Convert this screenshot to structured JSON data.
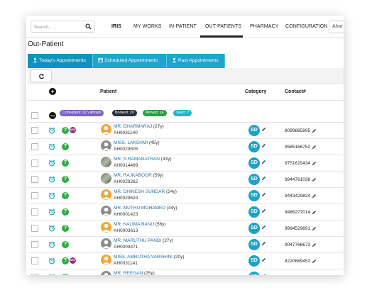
{
  "nav": {
    "search_placeholder": "Search......",
    "brand": "IRIS",
    "items": [
      "MY WORKS",
      "IN-PATIENT",
      "OUT-PATIENTS",
      "PHARMACY",
      "CONFIGURATION"
    ],
    "active_item": "OUT-PATIENTS",
    "right_select": "Ahar"
  },
  "page_title": "Out-Patient",
  "tabs": [
    {
      "label": "Today's Appointments",
      "icon": "user-icon",
      "active": true
    },
    {
      "label": "Scheduled Appointments",
      "icon": "calendar-icon",
      "active": false
    },
    {
      "label": "Past Appointments",
      "icon": "user-icon",
      "active": false
    }
  ],
  "toolbar": {
    "refresh_icon": "refresh-icon"
  },
  "table": {
    "columns": {
      "patient": "Patient",
      "category": "Category",
      "contact": "Contact#"
    }
  },
  "group": {
    "consultant": "Consultant: Dr.Vikhram",
    "booked": "Booked: 20",
    "arrived": "Arrived: 14",
    "seen": "Seen: 7"
  },
  "colors": {
    "tab_blue": "#1ea6cf",
    "link_blue": "#1c6fa8",
    "consultant_badge": "#7b62c4",
    "booked_badge": "#2b2f3a",
    "arrived_badge": "#2e9e3f",
    "seen_badge": "#1fb5cf",
    "category_badge": "#1ba3c9",
    "question_green": "#2eae45",
    "new_badge": "#9b2a8c"
  },
  "rows": [
    {
      "name": "MR. DHARMARAJ",
      "age": "(27y)",
      "id": "AH0031140",
      "category": "SD",
      "contact": "8098885995",
      "avatar": "orange",
      "new_badge": true
    },
    {
      "name": "MISS. LAKSHMI",
      "age": "(45y)",
      "id": "AH0029505",
      "category": "SD",
      "contact": "9585166752",
      "avatar": "gray",
      "new_badge": false
    },
    {
      "name": "MR. S.RAMANATHAN",
      "age": "(43y)",
      "id": "AH0014489",
      "category": "SD",
      "contact": "9751615434",
      "avatar": "photo",
      "new_badge": false
    },
    {
      "name": "MR. RAJKABOOR",
      "age": "(59y)",
      "id": "AH0029262",
      "category": "SD",
      "contact": "9944761038",
      "avatar": "photo",
      "new_badge": false
    },
    {
      "name": "MR. DHINESH SUNDAR",
      "age": "(24y)",
      "id": "AH0029624",
      "category": "SD",
      "contact": "9443429824",
      "avatar": "orange",
      "new_badge": false
    },
    {
      "name": "MR. MUTHU MOHAMED",
      "age": "(44y)",
      "id": "AH0001423",
      "category": "SD",
      "contact": "9486277014",
      "avatar": "gray",
      "new_badge": false
    },
    {
      "name": "MR. KALIMA BANU",
      "age": "(56y)",
      "id": "AH0003613",
      "category": "SD",
      "contact": "9994529891",
      "avatar": "orange",
      "new_badge": false
    },
    {
      "name": "MR. MARUTHU PANDI",
      "age": "(27y)",
      "id": "AH0009471",
      "category": "SD",
      "contact": "9047766673",
      "avatar": "gray",
      "new_badge": false
    },
    {
      "name": "MISS. AMRUTHA VARSHINI",
      "age": "(20y)",
      "id": "AH0031141",
      "category": "SD",
      "contact": "8220689452",
      "avatar": "orange",
      "new_badge": true
    },
    {
      "name": "MR. REEGAN",
      "age": "(25y)",
      "id": "",
      "category": "SD",
      "contact": "",
      "avatar": "gray",
      "new_badge": false
    }
  ]
}
